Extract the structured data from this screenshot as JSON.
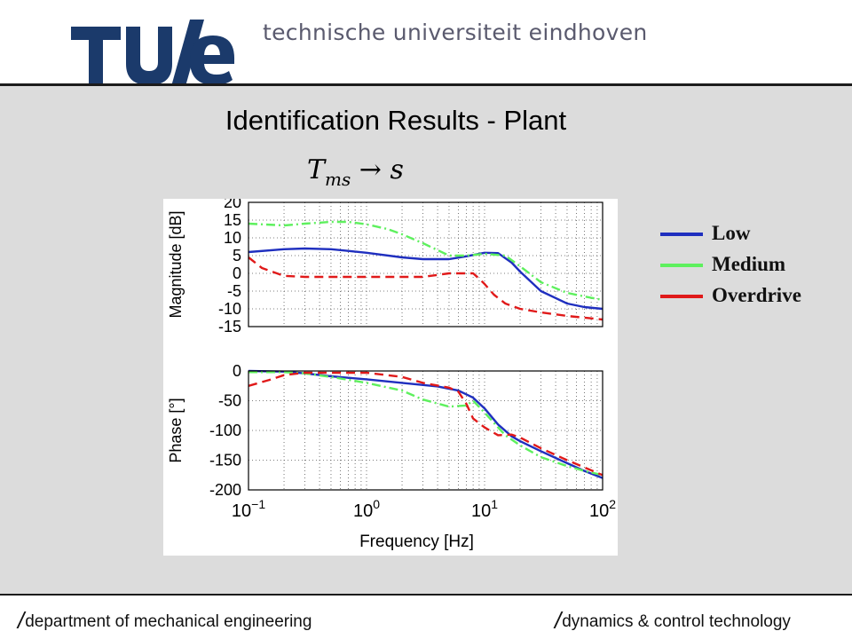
{
  "header": {
    "logo_text": "TU/e",
    "university_name": "technische universiteit eindhoven",
    "logo_color": "#1b3a6b"
  },
  "slide": {
    "title": "Identification Results - Plant",
    "subtitle_main": "T",
    "subtitle_sub": "ms",
    "subtitle_arrow": "→",
    "subtitle_target": "s"
  },
  "footer": {
    "left": "department of mechanical engineering",
    "right": "dynamics & control technology"
  },
  "legend": [
    {
      "label": "Low",
      "color": "#1f2fbf"
    },
    {
      "label": "Medium",
      "color": "#5ef05e"
    },
    {
      "label": "Overdrive",
      "color": "#e01a1a"
    }
  ],
  "chart_data": [
    {
      "type": "line",
      "ylabel": "Magnitude [dB]",
      "xscale": "log",
      "xlim": [
        0.1,
        100
      ],
      "ylim": [
        -15,
        20
      ],
      "yticks": [
        20,
        15,
        10,
        5,
        0,
        -5,
        -10,
        -15
      ],
      "grid": true,
      "series": [
        {
          "name": "Low",
          "color": "#1f2fbf",
          "dash": "solid",
          "x": [
            0.1,
            0.2,
            0.3,
            0.5,
            1,
            2,
            3,
            5,
            7,
            10,
            13,
            17,
            20,
            30,
            50,
            70,
            100
          ],
          "y": [
            6,
            6.8,
            7,
            6.8,
            5.8,
            4.5,
            4,
            4,
            4.8,
            5.8,
            5.7,
            3,
            0.5,
            -5,
            -8.5,
            -9.5,
            -10
          ]
        },
        {
          "name": "Medium",
          "color": "#5ef05e",
          "dash": "dashdot",
          "x": [
            0.1,
            0.2,
            0.3,
            0.5,
            0.7,
            1,
            1.5,
            2,
            3,
            5,
            7,
            10,
            15,
            20,
            30,
            50,
            70,
            100
          ],
          "y": [
            14,
            13.5,
            14,
            14.5,
            14.5,
            13.8,
            12.5,
            11,
            8.5,
            5,
            5,
            5.5,
            5,
            2,
            -2.5,
            -5.5,
            -6.5,
            -7.5
          ]
        },
        {
          "name": "Overdrive",
          "color": "#e01a1a",
          "dash": "dashed",
          "x": [
            0.1,
            0.13,
            0.2,
            0.3,
            0.5,
            1,
            2,
            3,
            5,
            8,
            9,
            10,
            12,
            15,
            20,
            30,
            50,
            100
          ],
          "y": [
            4.5,
            1.5,
            -0.7,
            -1,
            -1,
            -1,
            -1,
            -1,
            0,
            0,
            -1.5,
            -3,
            -6,
            -8.5,
            -10,
            -11,
            -12,
            -13
          ]
        }
      ]
    },
    {
      "type": "line",
      "ylabel": "Phase [°]",
      "xlabel": "Frequency [Hz]",
      "xscale": "log",
      "xlim": [
        0.1,
        100
      ],
      "xtick_base": "10",
      "xtick_exponents": [
        "−1",
        "0",
        "1",
        "2"
      ],
      "ylim": [
        -200,
        0
      ],
      "yticks": [
        0,
        -50,
        -100,
        -150,
        -200
      ],
      "grid": true,
      "series": [
        {
          "name": "Low",
          "color": "#1f2fbf",
          "dash": "solid",
          "x": [
            0.1,
            0.2,
            0.3,
            0.5,
            1,
            2,
            4,
            6,
            8,
            10,
            13,
            17,
            20,
            30,
            50,
            70,
            100
          ],
          "y": [
            0,
            -1,
            -4,
            -9,
            -14,
            -20,
            -26,
            -33,
            -45,
            -63,
            -90,
            -110,
            -118,
            -135,
            -155,
            -168,
            -180
          ]
        },
        {
          "name": "Medium",
          "color": "#5ef05e",
          "dash": "dashdot",
          "x": [
            0.1,
            0.2,
            0.3,
            0.5,
            1,
            2,
            3,
            5,
            7,
            8,
            10,
            13,
            15,
            20,
            30,
            50,
            70,
            100
          ],
          "y": [
            -2,
            -2,
            -4,
            -10,
            -20,
            -33,
            -48,
            -60,
            -58,
            -50,
            -70,
            -95,
            -108,
            -125,
            -145,
            -160,
            -168,
            -175
          ]
        },
        {
          "name": "Overdrive",
          "color": "#e01a1a",
          "dash": "dashed",
          "x": [
            0.1,
            0.15,
            0.2,
            0.3,
            0.5,
            1,
            2,
            3,
            5,
            6,
            7,
            8,
            10,
            13,
            17,
            20,
            30,
            50,
            100
          ],
          "y": [
            -25,
            -15,
            -7,
            -3,
            -3,
            -3,
            -10,
            -20,
            -28,
            -35,
            -55,
            -80,
            -95,
            -108,
            -107,
            -112,
            -130,
            -150,
            -175
          ]
        }
      ]
    }
  ]
}
